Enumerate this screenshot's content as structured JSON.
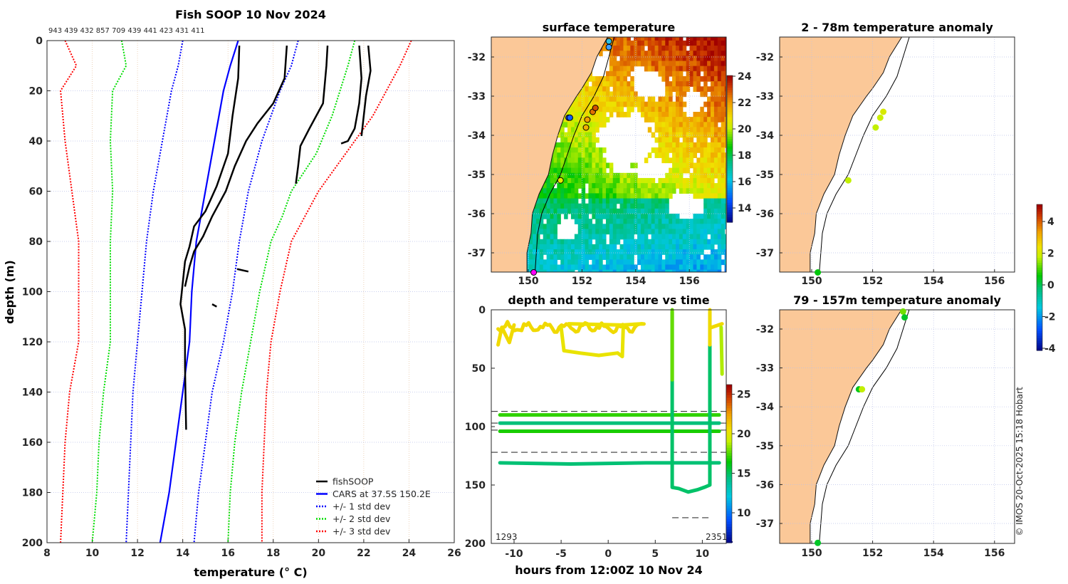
{
  "chart_data": [
    {
      "type": "line",
      "title": "Fish SOOP 10 Nov 2024",
      "counts": "943 439 432 857 709 439 441 423 431 411",
      "xlabel": "temperature (° C)",
      "ylabel": "depth (m)",
      "xlim": [
        8,
        26
      ],
      "ylim": [
        0,
        200
      ],
      "xticks": [
        "8",
        "10",
        "12",
        "14",
        "16",
        "18",
        "20",
        "22",
        "24",
        "26"
      ],
      "yticks": [
        "0",
        "20",
        "40",
        "60",
        "80",
        "100",
        "120",
        "140",
        "160",
        "180",
        "200"
      ],
      "legend": [
        "fishSOOP",
        "CARS at 37.5S 150.2E",
        "+/- 1 std dev",
        "+/- 2 std dev",
        "+/- 3 std dev"
      ],
      "legend_position": "bottom-right",
      "series": [
        {
          "name": "CARS",
          "color": "#0000ff",
          "style": "solid",
          "points": [
            [
              16.45,
              0
            ],
            [
              16.1,
              10
            ],
            [
              15.8,
              20
            ],
            [
              15.4,
              40
            ],
            [
              15.0,
              60
            ],
            [
              14.6,
              80
            ],
            [
              14.4,
              100
            ],
            [
              14.3,
              120
            ],
            [
              14.0,
              140
            ],
            [
              13.7,
              160
            ],
            [
              13.4,
              180
            ],
            [
              13.0,
              200
            ]
          ]
        },
        {
          "name": "-1 std",
          "color": "#0000ff",
          "style": "dotted",
          "points": [
            [
              14.0,
              0
            ],
            [
              13.8,
              10
            ],
            [
              13.5,
              20
            ],
            [
              13.1,
              40
            ],
            [
              12.7,
              60
            ],
            [
              12.4,
              80
            ],
            [
              12.2,
              100
            ],
            [
              12.0,
              120
            ],
            [
              11.8,
              140
            ],
            [
              11.7,
              160
            ],
            [
              11.6,
              180
            ],
            [
              11.5,
              200
            ]
          ]
        },
        {
          "name": "+1 std",
          "color": "#0000ff",
          "style": "dotted",
          "points": [
            [
              19.1,
              0
            ],
            [
              18.8,
              10
            ],
            [
              18.3,
              20
            ],
            [
              17.5,
              40
            ],
            [
              16.9,
              60
            ],
            [
              16.5,
              80
            ],
            [
              16.2,
              100
            ],
            [
              15.8,
              120
            ],
            [
              15.3,
              140
            ],
            [
              15.0,
              160
            ],
            [
              14.7,
              180
            ],
            [
              14.5,
              200
            ]
          ]
        },
        {
          "name": "-2 std",
          "color": "#00dd00",
          "style": "dotted",
          "points": [
            [
              11.3,
              0
            ],
            [
              11.5,
              10
            ],
            [
              10.9,
              20
            ],
            [
              10.8,
              40
            ],
            [
              10.9,
              60
            ],
            [
              10.8,
              80
            ],
            [
              10.8,
              100
            ],
            [
              10.8,
              120
            ],
            [
              10.5,
              140
            ],
            [
              10.3,
              160
            ],
            [
              10.2,
              180
            ],
            [
              10.0,
              200
            ]
          ]
        },
        {
          "name": "+2 std",
          "color": "#00dd00",
          "style": "dotted",
          "points": [
            [
              21.6,
              0
            ],
            [
              21.3,
              10
            ],
            [
              20.6,
              30
            ],
            [
              19.9,
              45
            ],
            [
              18.8,
              60
            ],
            [
              18.4,
              70
            ],
            [
              17.9,
              80
            ],
            [
              17.4,
              100
            ],
            [
              17.0,
              120
            ],
            [
              16.6,
              140
            ],
            [
              16.3,
              160
            ],
            [
              16.1,
              180
            ],
            [
              16.0,
              200
            ]
          ]
        },
        {
          "name": "-3 std",
          "color": "#ff0000",
          "style": "dotted",
          "points": [
            [
              8.8,
              0
            ],
            [
              9.3,
              10
            ],
            [
              8.6,
              20
            ],
            [
              8.8,
              40
            ],
            [
              9.1,
              60
            ],
            [
              9.4,
              80
            ],
            [
              9.4,
              100
            ],
            [
              9.4,
              120
            ],
            [
              9.0,
              140
            ],
            [
              8.8,
              160
            ],
            [
              8.7,
              180
            ],
            [
              8.6,
              200
            ]
          ]
        },
        {
          "name": "+3 std",
          "color": "#ff0000",
          "style": "dotted",
          "points": [
            [
              24.1,
              0
            ],
            [
              23.6,
              10
            ],
            [
              22.4,
              30
            ],
            [
              21.2,
              45
            ],
            [
              20.0,
              60
            ],
            [
              19.4,
              70
            ],
            [
              18.8,
              80
            ],
            [
              18.3,
              100
            ],
            [
              17.9,
              120
            ],
            [
              17.7,
              140
            ],
            [
              17.6,
              160
            ],
            [
              17.5,
              180
            ],
            [
              17.5,
              200
            ]
          ]
        },
        {
          "name": "fishSOOP",
          "color": "#000000",
          "style": "solid",
          "points": [
            [
              16.5,
              2
            ],
            [
              16.45,
              15
            ],
            [
              16.2,
              30
            ],
            [
              16.0,
              45
            ],
            [
              15.5,
              58
            ],
            [
              15.0,
              68
            ],
            [
              14.5,
              74
            ],
            [
              14.3,
              82
            ],
            [
              14.1,
              88
            ],
            [
              13.9,
              105
            ],
            [
              14.1,
              115
            ],
            [
              14.1,
              130
            ],
            [
              14.15,
              155
            ]
          ]
        },
        {
          "name": "fishSOOP",
          "color": "#000000",
          "style": "solid",
          "points": [
            [
              18.6,
              2
            ],
            [
              18.5,
              15
            ],
            [
              18.0,
              25
            ],
            [
              17.3,
              33
            ],
            [
              16.8,
              40
            ],
            [
              16.3,
              50
            ],
            [
              15.9,
              60
            ],
            [
              15.3,
              70
            ],
            [
              14.9,
              78
            ],
            [
              14.5,
              84
            ],
            [
              14.3,
              90
            ],
            [
              14.1,
              98
            ]
          ]
        },
        {
          "name": "fishSOOP",
          "color": "#000000",
          "style": "solid",
          "points": [
            [
              20.4,
              2
            ],
            [
              20.35,
              10
            ],
            [
              20.2,
              25
            ],
            [
              19.6,
              35
            ],
            [
              19.2,
              42
            ],
            [
              19.1,
              50
            ],
            [
              19.0,
              57
            ]
          ]
        },
        {
          "name": "fishSOOP",
          "color": "#000000",
          "style": "solid",
          "points": [
            [
              21.8,
              2
            ],
            [
              21.9,
              15
            ],
            [
              21.8,
              25
            ],
            [
              21.6,
              35
            ],
            [
              21.3,
              40
            ],
            [
              21.0,
              41
            ]
          ]
        },
        {
          "name": "fishSOOP",
          "color": "#000000",
          "style": "solid",
          "points": [
            [
              22.2,
              2
            ],
            [
              22.3,
              12
            ],
            [
              22.1,
              22
            ],
            [
              22.0,
              30
            ],
            [
              21.9,
              38
            ]
          ]
        },
        {
          "name": "fishSOOP",
          "color": "#000000",
          "style": "solid",
          "points": [
            [
              16.4,
              91
            ],
            [
              16.9,
              92
            ]
          ]
        },
        {
          "name": "fishSOOP",
          "color": "#000000",
          "style": "solid",
          "points": [
            [
              15.3,
              105
            ],
            [
              15.5,
              106
            ]
          ]
        }
      ]
    },
    {
      "type": "heatmap",
      "title": "surface temperature",
      "xticks": [
        "150",
        "152",
        "154",
        "156"
      ],
      "yticks": [
        "-32",
        "-33",
        "-34",
        "-35",
        "-36",
        "-37"
      ],
      "colorbar_ticks": [
        "14",
        "16",
        "18",
        "20",
        "22",
        "24"
      ],
      "colorbar_range": [
        13,
        24.5
      ]
    },
    {
      "type": "scatter",
      "title": "depth and temperature vs time",
      "xlabel": "hours from 12:00Z 10 Nov 24",
      "xlim": [
        -12.4,
        12.6
      ],
      "ylim": [
        0,
        200
      ],
      "xticks": [
        "-10",
        "-5",
        "0",
        "5",
        "10"
      ],
      "yticks": [
        "0",
        "50",
        "100",
        "150",
        "200"
      ],
      "colorbar_ticks": [
        "10",
        "15",
        "20",
        "25"
      ],
      "colorbar_range": [
        6.5,
        27
      ],
      "left_label": "1293",
      "right_label": "2351",
      "dashed_depths": [
        87,
        97,
        103,
        122
      ]
    },
    {
      "type": "scatter",
      "title": "2 - 78m temperature anomaly",
      "xticks": [
        "150",
        "152",
        "154",
        "156"
      ],
      "yticks": [
        "-32",
        "-33",
        "-34",
        "-35",
        "-36",
        "-37"
      ],
      "points": [
        [
          -33.4,
          152.35,
          2.2
        ],
        [
          -33.55,
          152.25,
          2.0
        ],
        [
          -33.8,
          152.1,
          1.9
        ],
        [
          -35.15,
          151.2,
          1.9
        ],
        [
          -37.5,
          150.2,
          0.6
        ]
      ]
    },
    {
      "type": "scatter",
      "title": "79 - 157m temperature anomaly",
      "xticks": [
        "150",
        "152",
        "154",
        "156"
      ],
      "yticks": [
        "-32",
        "-33",
        "-34",
        "-35",
        "-36",
        "-37"
      ],
      "points": [
        [
          -31.55,
          153.0,
          1.4
        ],
        [
          -31.7,
          153.05,
          0.4
        ],
        [
          -33.55,
          151.55,
          0.5
        ],
        [
          -33.55,
          151.65,
          1.9
        ],
        [
          -37.5,
          150.2,
          0.4
        ]
      ],
      "colorbar_ticks": [
        "4",
        "2",
        "0",
        "-2",
        "-4"
      ],
      "colorbar_range": [
        -4.3,
        5.3
      ]
    }
  ],
  "credit": "© IMOS 20-Oct-2025 15:18 Hobart"
}
